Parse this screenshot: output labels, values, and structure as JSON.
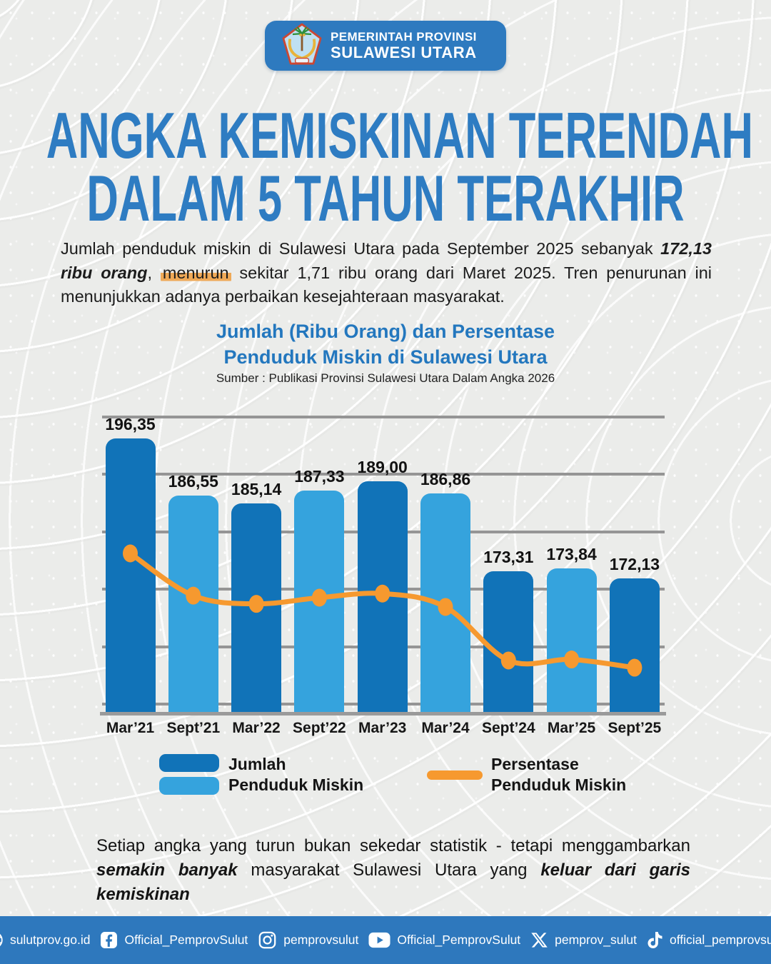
{
  "header": {
    "line1": "PEMERINTAH PROVINSI",
    "line2": "SULAWESI UTARA"
  },
  "title": {
    "line1": "ANGKA KEMISKINAN TERENDAH",
    "line2": "DALAM 5 TAHUN TERAKHIR"
  },
  "intro": {
    "segments": [
      {
        "text": "Jumlah penduduk miskin di Sulawesi Utara pada September 2025 sebanyak ",
        "style": "normal"
      },
      {
        "text": "172,13 ribu orang",
        "style": "bold-italic"
      },
      {
        "text": ", ",
        "style": "normal"
      },
      {
        "text": "menurun",
        "style": "highlight"
      },
      {
        "text": " sekitar 1,71 ribu orang dari Maret 2025. Tren penurunan ini menunjukkan adanya perbaikan kesejahteraan masyarakat.",
        "style": "normal"
      }
    ]
  },
  "chart_heading": {
    "line1": "Jumlah (Ribu Orang) dan Persentase",
    "line2": "Penduduk Miskin di Sulawesi Utara",
    "source": "Sumber : Publikasi Provinsi Sulawesi Utara Dalam Angka 2026"
  },
  "chart_data": {
    "type": "bar",
    "subtype": "bar-with-line-overlay",
    "title": "Jumlah (Ribu Orang) dan Persentase Penduduk Miskin di Sulawesi Utara",
    "source": "Sumber : Publikasi Provinsi Sulawesi Utara Dalam Angka 2026",
    "categories": [
      "Mar’21",
      "Sept’21",
      "Mar’22",
      "Sept’22",
      "Mar’23",
      "Mar’24",
      "Sept’24",
      "Mar’25",
      "Sept’25"
    ],
    "series": [
      {
        "name": "Jumlah Penduduk Miskin",
        "type": "bar",
        "unit": "ribu orang",
        "values": [
          196.35,
          186.55,
          185.14,
          187.33,
          189.0,
          186.86,
          173.31,
          173.84,
          172.13
        ],
        "value_labels": [
          "196,35",
          "186,55",
          "185,14",
          "187,33",
          "189,00",
          "186,86",
          "173,31",
          "173,84",
          "172,13"
        ]
      },
      {
        "name": "Persentase Penduduk Miskin",
        "type": "line",
        "unit": "percent (no data labels shown; values estimated from plotted positions)",
        "values": [
          7.77,
          7.36,
          7.28,
          7.34,
          7.38,
          7.25,
          6.73,
          6.74,
          6.66
        ]
      }
    ],
    "gridlines": true,
    "y_axis_labels_shown": false,
    "legend_position": "bottom",
    "bar_palette_alternating": [
      "#1173b8",
      "#35a3dd"
    ],
    "line_color": "#f6992f"
  },
  "legend": {
    "bars_line1": "Jumlah",
    "bars_line2": "Penduduk Miskin",
    "line_line1": "Persentase",
    "line_line2": "Penduduk Miskin"
  },
  "closing": {
    "segments": [
      {
        "text": "Setiap angka yang turun bukan sekedar statistik - tetapi menggambarkan ",
        "style": "normal"
      },
      {
        "text": "semakin banyak",
        "style": "bold-italic"
      },
      {
        "text": " masyarakat Sulawesi Utara yang ",
        "style": "normal"
      },
      {
        "text": "keluar dari garis kemiskinan",
        "style": "bold-italic"
      }
    ]
  },
  "footer": {
    "items": [
      {
        "icon": "globe-icon",
        "label": "sulutprov.go.id"
      },
      {
        "icon": "facebook-icon",
        "label": "Official_PemprovSulut"
      },
      {
        "icon": "instagram-icon",
        "label": "pemprovsulut"
      },
      {
        "icon": "youtube-icon",
        "label": "Official_PemprovSulut"
      },
      {
        "icon": "x-icon",
        "label": "pemprov_sulut"
      },
      {
        "icon": "tiktok-icon",
        "label": "official_pemprovsulut"
      }
    ]
  },
  "colors": {
    "title_blue": "#2e7cc2",
    "badge_blue": "#2e7abf",
    "footer_blue": "#2e78bd",
    "bar_dark": "#1173b8",
    "bar_light": "#35a3dd",
    "line_orange": "#f6992f",
    "highlight_orange": "#efa957",
    "gridline_gray": "#959595",
    "background_gray": "#ebecea"
  }
}
